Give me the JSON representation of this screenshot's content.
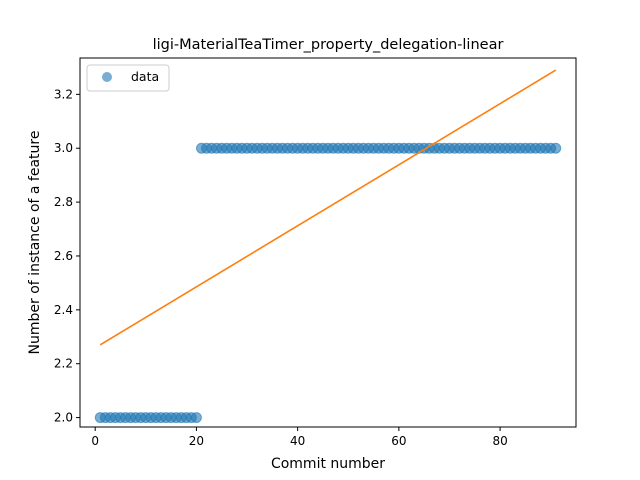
{
  "chart_data": {
    "type": "scatter",
    "title": "ligi-MaterialTeaTimer_property_delegation-linear",
    "xlabel": "Commit number",
    "ylabel": "Number of instance of a feature",
    "xlim": [
      -3,
      95
    ],
    "ylim": [
      1.965,
      3.335
    ],
    "xticks": [
      0,
      20,
      40,
      60,
      80
    ],
    "yticks": [
      2.0,
      2.2,
      2.4,
      2.6,
      2.8,
      3.0,
      3.2
    ],
    "grid": false,
    "legend": {
      "position": "top-left",
      "entries": [
        "data"
      ]
    },
    "series": [
      {
        "name": "data",
        "kind": "scatter",
        "color": "#1f77b4",
        "segments": [
          {
            "x_from": 1,
            "x_to": 20,
            "y": 2.0
          },
          {
            "x_from": 21,
            "x_to": 91,
            "y": 3.0
          }
        ]
      },
      {
        "kind": "line",
        "color": "#ff7f0e",
        "x": [
          1,
          91
        ],
        "y": [
          2.27,
          3.29
        ]
      }
    ]
  }
}
